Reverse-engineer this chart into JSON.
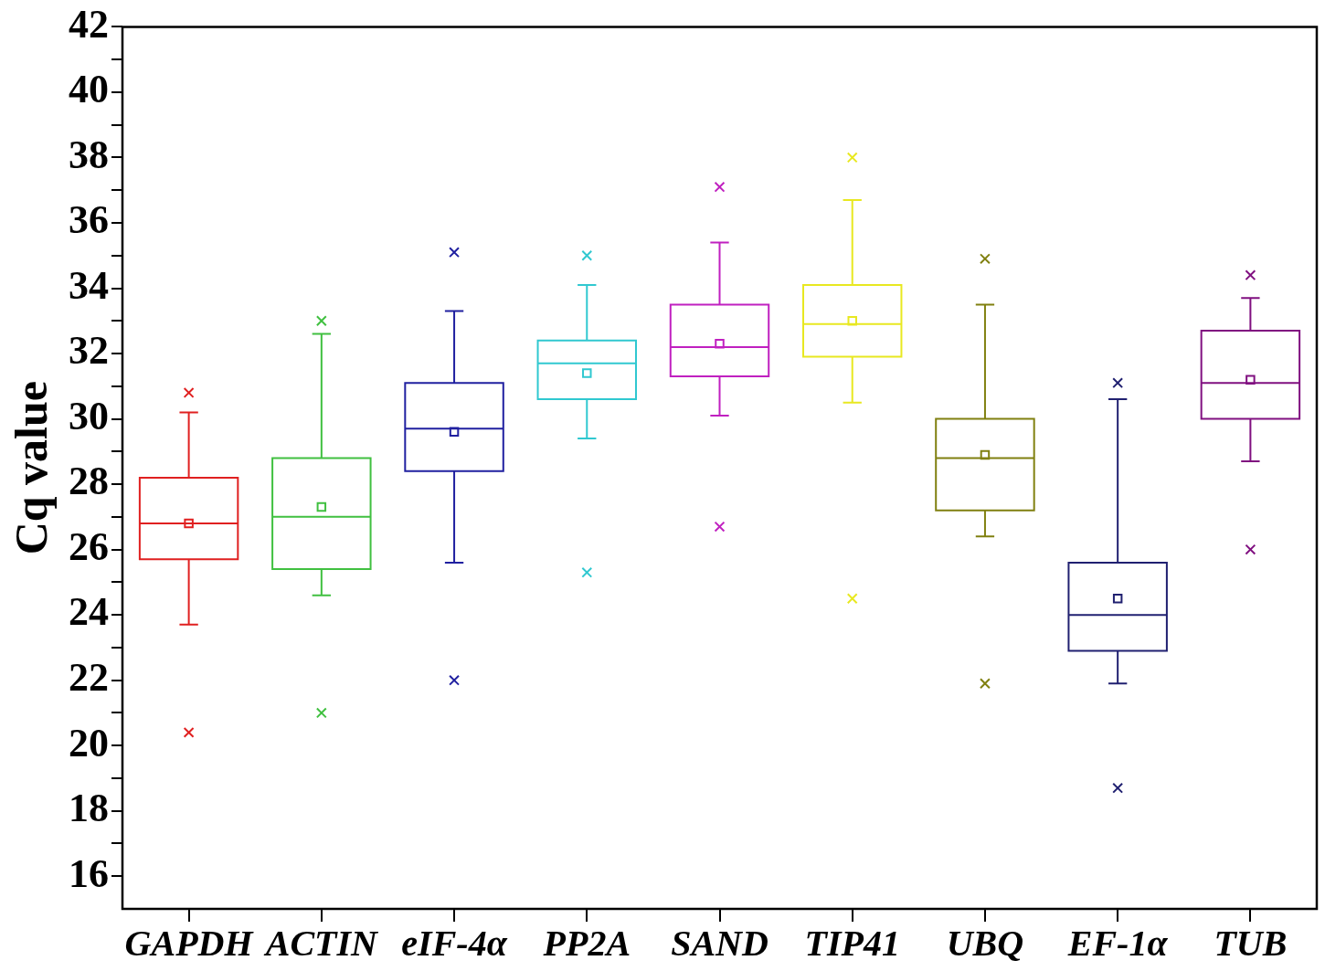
{
  "chart_data": {
    "type": "box",
    "ylabel": "Cq value",
    "categories": [
      "GAPDH",
      "ACTIN",
      "eIF-4α",
      "PP2A",
      "SAND",
      "TIP41",
      "UBQ",
      "EF-1α",
      "TUB"
    ],
    "colors": [
      "#e02020",
      "#40c040",
      "#2020a0",
      "#30c8d0",
      "#c020c0",
      "#e8e820",
      "#808010",
      "#202070",
      "#801080"
    ],
    "ylim": [
      15,
      42
    ],
    "yticks": [
      16,
      {
        "value": 17,
        "label": null
      },
      18,
      {
        "value": 19,
        "label": null
      },
      20,
      {
        "value": 21,
        "label": null
      },
      22,
      {
        "value": 23,
        "label": null
      },
      24,
      {
        "value": 25,
        "label": null
      },
      26,
      {
        "value": 27,
        "label": null
      },
      28,
      {
        "value": 29,
        "label": null
      },
      30,
      {
        "value": 31,
        "label": null
      },
      32,
      {
        "value": 33,
        "label": null
      },
      34,
      {
        "value": 35,
        "label": null
      },
      36,
      {
        "value": 37,
        "label": null
      },
      38,
      {
        "value": 39,
        "label": null
      },
      40,
      {
        "value": 41,
        "label": null
      },
      42
    ],
    "grid": false,
    "boxes": [
      {
        "low": 23.7,
        "q1": 25.7,
        "median": 26.8,
        "q3": 28.2,
        "high": 30.2,
        "mean": 26.8,
        "outliers": [
          30.8,
          20.4
        ]
      },
      {
        "low": 24.6,
        "q1": 25.4,
        "median": 27.0,
        "q3": 28.8,
        "high": 32.6,
        "mean": 27.3,
        "outliers": [
          33.0,
          21.0
        ]
      },
      {
        "low": 25.6,
        "q1": 28.4,
        "median": 29.7,
        "q3": 31.1,
        "high": 33.3,
        "mean": 29.6,
        "outliers": [
          35.1,
          22.0
        ]
      },
      {
        "low": 29.4,
        "q1": 30.6,
        "median": 31.7,
        "q3": 32.4,
        "high": 34.1,
        "mean": 31.4,
        "outliers": [
          35.0,
          25.3
        ]
      },
      {
        "low": 30.1,
        "q1": 31.3,
        "median": 32.2,
        "q3": 33.5,
        "high": 35.4,
        "mean": 32.3,
        "outliers": [
          37.1,
          26.7
        ]
      },
      {
        "low": 30.5,
        "q1": 31.9,
        "median": 32.9,
        "q3": 34.1,
        "high": 36.7,
        "mean": 33.0,
        "outliers": [
          38.0,
          24.5
        ]
      },
      {
        "low": 26.4,
        "q1": 27.2,
        "median": 28.8,
        "q3": 30.0,
        "high": 33.5,
        "mean": 28.9,
        "outliers": [
          34.9,
          21.9
        ]
      },
      {
        "low": 21.9,
        "q1": 22.9,
        "median": 24.0,
        "q3": 25.6,
        "high": 30.6,
        "mean": 24.5,
        "outliers": [
          31.1,
          18.7
        ]
      },
      {
        "low": 28.7,
        "q1": 30.0,
        "median": 31.1,
        "q3": 32.7,
        "high": 33.7,
        "mean": 31.2,
        "outliers": [
          34.4,
          26.0
        ]
      }
    ]
  }
}
